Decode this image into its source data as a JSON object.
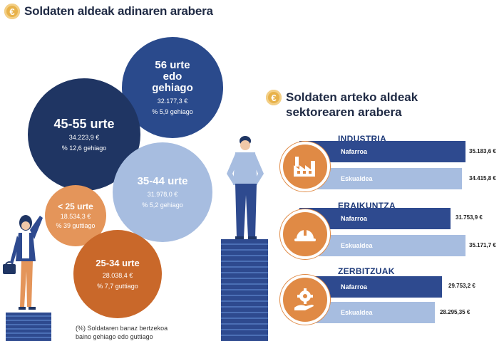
{
  "left_section": {
    "title": "Soldaten aldeak adinaren arabera",
    "icon": "euro-icon",
    "circles": [
      {
        "id": "56",
        "label_l1": "56 urte",
        "label_l2": "edo",
        "label_l3": "gehiago",
        "value": "32.177,3 €",
        "pct": "% 5,9 gehiago",
        "color": "#2a4a8c"
      },
      {
        "id": "45",
        "label": "45-55 urte",
        "value": "34.223,9 €",
        "pct": "% 12,6 gehiago",
        "color": "#1f3563"
      },
      {
        "id": "35",
        "label": "35-44 urte",
        "value": "31.978,0 €",
        "pct": "% 5,2 gehiago",
        "color": "#a7bde0"
      },
      {
        "id": "lt25",
        "label": "< 25 urte",
        "value": "18.534,3 €",
        "pct": "% 39 guttiago",
        "color": "#e4955a"
      },
      {
        "id": "25",
        "label": "25-34 urte",
        "value": "28.038,4 €",
        "pct": "% 7,7 guttiago",
        "color": "#c9682a"
      }
    ],
    "note_l1": "(%) Soldataren banaz bertzekoa",
    "note_l2": "baino gehiago edo guttiago"
  },
  "right_section": {
    "title_l1": "Soldaten arteko aldeak",
    "title_l2": "sektorearen arabera",
    "icon": "euro-icon",
    "sectors": [
      {
        "name": "INDUSTRIA",
        "icon": "factory-icon",
        "rows": [
          {
            "label": "Nafarroa",
            "value": "35.183,6 €",
            "color": "#2e4a8f"
          },
          {
            "label": "Eskualdea",
            "value": "34.415,8 €",
            "color": "#a7bde0"
          }
        ]
      },
      {
        "name": "ERAIKUNTZA",
        "icon": "helmet-icon",
        "rows": [
          {
            "label": "Nafarroa",
            "value": "31.753,9 €",
            "color": "#2e4a8f"
          },
          {
            "label": "Eskualdea",
            "value": "35.171,7 €",
            "color": "#a7bde0"
          }
        ]
      },
      {
        "name": "ZERBITZUAK",
        "icon": "gear-hand-icon",
        "rows": [
          {
            "label": "Nafarroa",
            "value": "29.753,2 €",
            "color": "#2e4a8f"
          },
          {
            "label": "Eskualdea",
            "value": "28.295,35 €",
            "color": "#a7bde0"
          }
        ]
      }
    ]
  }
}
